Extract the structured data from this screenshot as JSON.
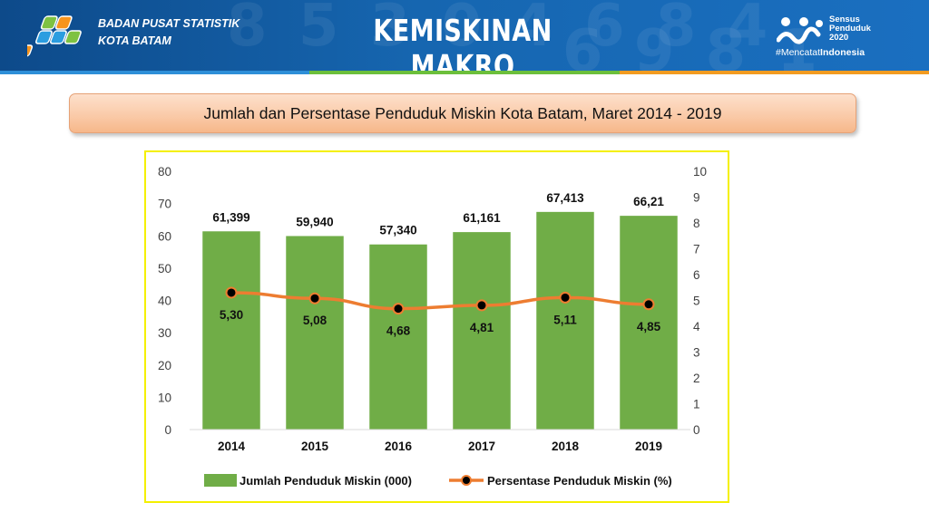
{
  "header": {
    "org_line1": "BADAN PUSAT STATISTIK",
    "org_line2": "KOTA BATAM",
    "title": "KEMISKINAN MAKRO",
    "census_line1": "Sensus",
    "census_line2": "Penduduk",
    "census_line3": "2020",
    "census_hashtag_prefix": "#Mencatat",
    "census_hashtag_suffix": "Indonesia"
  },
  "banner": {
    "title": "Jumlah dan Persentase Penduduk Miskin Kota Batam, Maret 2014 - 2019"
  },
  "colors": {
    "bar": "#70ad47",
    "line": "#ed7d31",
    "marker": "#000000",
    "header": "#1666b0",
    "frame": "#f4f000"
  },
  "chart_data": {
    "type": "bar",
    "categories": [
      "2014",
      "2015",
      "2016",
      "2017",
      "2018",
      "2019"
    ],
    "series": [
      {
        "name": "Jumlah Penduduk Miskin (000)",
        "type": "bar",
        "axis": "left",
        "values": [
          61.399,
          59.94,
          57.34,
          61.161,
          67.413,
          66.21
        ],
        "labels": [
          "61,399",
          "59,940",
          "57,340",
          "61,161",
          "67,413",
          "66,21"
        ]
      },
      {
        "name": "Persentase Penduduk Miskin (%)",
        "type": "line",
        "axis": "right",
        "values": [
          5.3,
          5.08,
          4.68,
          4.81,
          5.11,
          4.85
        ],
        "labels": [
          "5,30",
          "5,08",
          "4,68",
          "4,81",
          "5,11",
          "4,85"
        ]
      }
    ],
    "y_left": {
      "ylim": [
        0,
        80
      ],
      "ticks": [
        "0",
        "10",
        "20",
        "30",
        "40",
        "50",
        "60",
        "70",
        "80"
      ]
    },
    "y_right": {
      "ylim": [
        0,
        10
      ],
      "ticks": [
        "0",
        "1",
        "2",
        "3",
        "4",
        "5",
        "6",
        "7",
        "8",
        "9",
        "10"
      ]
    },
    "grid": false,
    "legend_position": "bottom"
  }
}
